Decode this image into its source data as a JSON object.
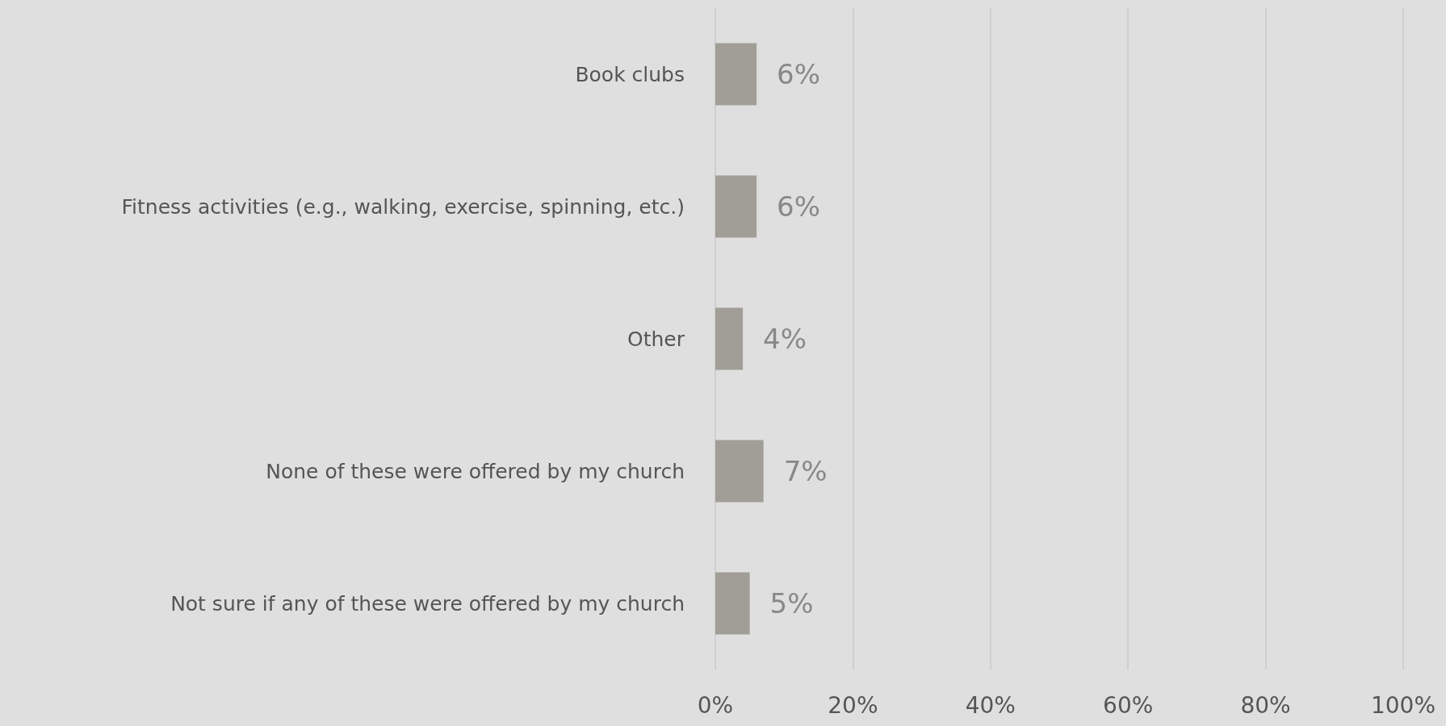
{
  "chart_data": {
    "type": "bar",
    "orientation": "horizontal",
    "categories": [
      "Book clubs",
      "Fitness activities (e.g., walking, exercise, spinning, etc.)",
      "Other",
      "None of these were offered by my church",
      "Not sure if any of these were offered by my church"
    ],
    "values": [
      6,
      6,
      4,
      7,
      5
    ],
    "value_labels": [
      "6%",
      "6%",
      "4%",
      "7%",
      "5%"
    ],
    "color": "#a09e97",
    "xlim": [
      0,
      100
    ],
    "xticks": [
      {
        "value": 0,
        "label": "0%"
      },
      {
        "value": 20,
        "label": "20%"
      },
      {
        "value": 40,
        "label": "40%"
      },
      {
        "value": 60,
        "label": "60%"
      },
      {
        "value": 80,
        "label": "80%"
      },
      {
        "value": 100,
        "label": "100%"
      }
    ],
    "grid": "x"
  }
}
